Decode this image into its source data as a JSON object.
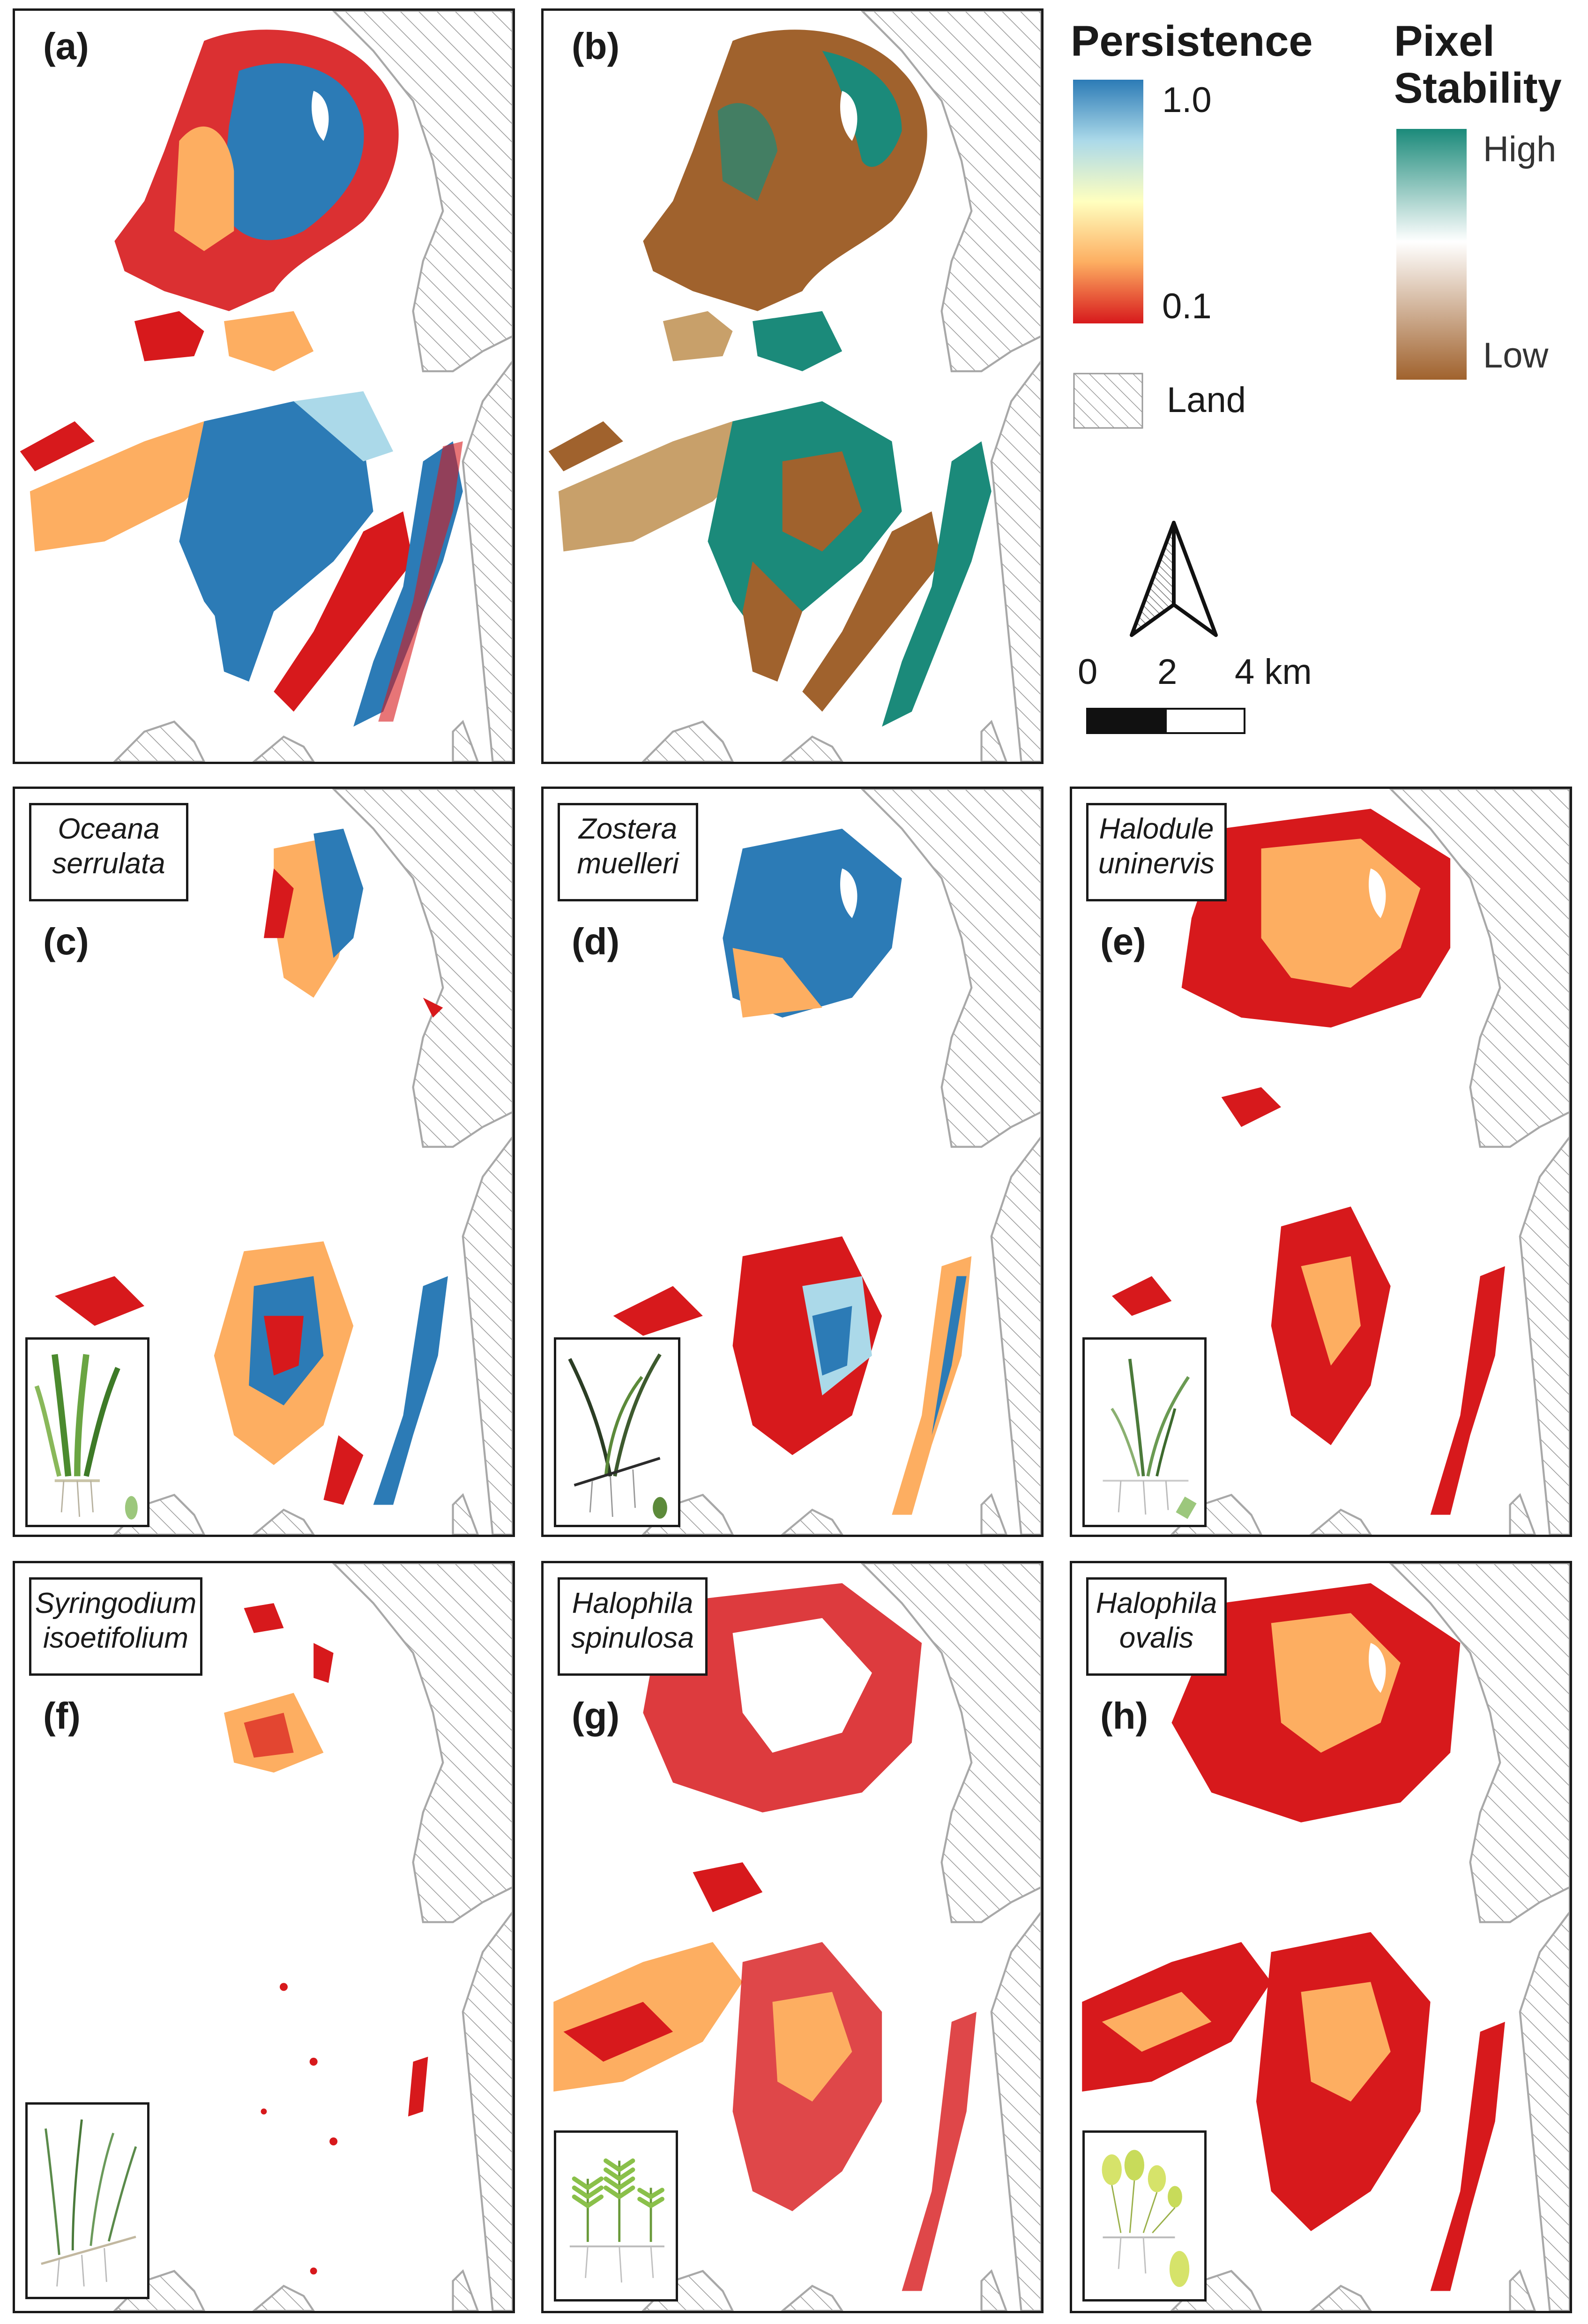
{
  "panels": [
    {
      "label": "(a)",
      "kind": "persistence"
    },
    {
      "label": "(b)",
      "kind": "stability"
    },
    {
      "label": "(c)",
      "species_line1": "Oceana",
      "species_line2": "serrulata",
      "kind": "species"
    },
    {
      "label": "(d)",
      "species_line1": "Zostera",
      "species_line2": "muelleri",
      "kind": "species"
    },
    {
      "label": "(e)",
      "species_line1": "Halodule",
      "species_line2": "uninervis",
      "kind": "species"
    },
    {
      "label": "(f)",
      "species_line1": "Syringodium",
      "species_line2": "isoetifolium",
      "kind": "species"
    },
    {
      "label": "(g)",
      "species_line1": "Halophila",
      "species_line2": "spinulosa",
      "kind": "species"
    },
    {
      "label": "(h)",
      "species_line1": "Halophila",
      "species_line2": "ovalis",
      "kind": "species"
    }
  ],
  "legend": {
    "persistence": {
      "title": "Persistence",
      "max_label": "1.0",
      "min_label": "0.1",
      "colors": [
        "#2c7bb6",
        "#abd9e9",
        "#ffffbf",
        "#fdae61",
        "#d7191c"
      ]
    },
    "stability": {
      "title_line1": "Pixel",
      "title_line2": "Stability",
      "high_label": "High",
      "low_label": "Low",
      "colors": [
        "#1b8a7a",
        "#ffffff",
        "#a0622d"
      ]
    },
    "land": {
      "label": "Land"
    },
    "scale_bar": {
      "tick_0": "0",
      "tick_1": "2",
      "tick_2": "4 km"
    },
    "north_arrow": {
      "icon": "north-arrow-icon"
    }
  }
}
